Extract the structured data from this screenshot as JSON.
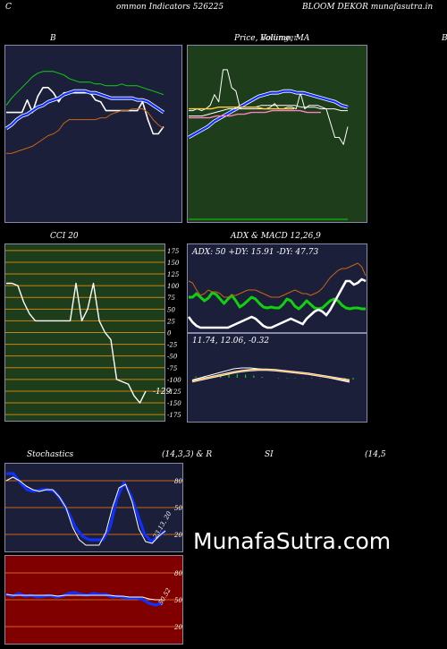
{
  "header": {
    "left": "C",
    "middle": "ommon  Indicators 526225",
    "right": "BLOOM DEKOR munafasutra.in"
  },
  "titles": {
    "bb": "B",
    "price": "Price,  Volume,  MA",
    "price_overlap": "Bollinger",
    "far_right": "B",
    "cci": "CCI 20",
    "adx_macd": "ADX  & MACD 12,26,9",
    "stoch": "Stochastics",
    "stoch_params": "(14,3,3) & R",
    "si": "SI",
    "si_params": "(14,5"
  },
  "watermark": "MunafaSutra.com",
  "colors": {
    "navy": "#1b1f3a",
    "green_panel": "#1e3d1a",
    "red_panel": "#800000",
    "blue_line": "#1030ff",
    "green_line": "#10d010",
    "orange_line": "#c86414"
  },
  "chart_data": [
    {
      "type": "line",
      "panel": "bollinger-bands",
      "title": "B",
      "ylim": [
        0,
        10
      ],
      "series": [
        {
          "role": "price",
          "color": "#ffffff",
          "values": [
            6.2,
            6.2,
            6.2,
            6.2,
            6.9,
            6.2,
            7.1,
            7.6,
            7.6,
            7.3,
            6.8,
            7.3,
            7.3,
            7.3,
            7.3,
            7.3,
            7.3,
            6.9,
            6.8,
            6.3,
            6.3,
            6.3,
            6.3,
            6.3,
            6.3,
            6.3,
            6.8,
            5.8,
            5.0,
            5.0,
            5.4
          ]
        },
        {
          "role": "upper",
          "color": "#10d010",
          "values": [
            6.6,
            7.0,
            7.3,
            7.6,
            7.9,
            8.2,
            8.4,
            8.5,
            8.5,
            8.5,
            8.4,
            8.3,
            8.1,
            8.0,
            7.9,
            7.9,
            7.9,
            7.8,
            7.8,
            7.7,
            7.7,
            7.7,
            7.8,
            7.7,
            7.7,
            7.7,
            7.6,
            7.5,
            7.4,
            7.3,
            7.2
          ]
        },
        {
          "role": "middle",
          "color": "#1030ff",
          "values": [
            5.3,
            5.5,
            5.8,
            6.0,
            6.1,
            6.3,
            6.5,
            6.6,
            6.8,
            6.9,
            7.0,
            7.2,
            7.3,
            7.4,
            7.4,
            7.4,
            7.3,
            7.3,
            7.2,
            7.1,
            7.0,
            7.0,
            7.0,
            7.0,
            7.0,
            6.9,
            6.9,
            6.8,
            6.6,
            6.4,
            6.2
          ]
        },
        {
          "role": "lower",
          "color": "#c86414",
          "values": [
            3.9,
            3.9,
            4.0,
            4.1,
            4.2,
            4.3,
            4.5,
            4.7,
            4.9,
            5.0,
            5.2,
            5.6,
            5.8,
            5.8,
            5.8,
            5.8,
            5.8,
            5.8,
            5.9,
            5.9,
            6.1,
            6.2,
            6.3,
            6.3,
            6.4,
            6.4,
            6.4,
            6.2,
            5.8,
            5.5,
            5.3
          ]
        }
      ]
    },
    {
      "type": "line",
      "panel": "price-volume-ma",
      "title": "Price,  Volume,  MA",
      "ylim": [
        0,
        10
      ],
      "series": [
        {
          "role": "price",
          "color": "#ffffff",
          "values": [
            6.3,
            6.3,
            6.4,
            6.3,
            6.4,
            6.6,
            7.2,
            6.8,
            8.6,
            8.6,
            7.6,
            7.4,
            6.4,
            6.4,
            6.4,
            6.4,
            6.4,
            6.4,
            6.4,
            6.5,
            6.7,
            6.4,
            6.4,
            6.5,
            6.5,
            6.4,
            7.3,
            6.4,
            6.6,
            6.6,
            6.6,
            6.5,
            6.4,
            5.6,
            4.8,
            4.8,
            4.4,
            5.4
          ]
        },
        {
          "role": "ma-blue",
          "color": "#1030ff",
          "values": [
            4.8,
            5.0,
            5.2,
            5.4,
            5.7,
            5.9,
            6.1,
            6.3,
            6.5,
            6.7,
            6.9,
            7.1,
            7.2,
            7.3,
            7.3,
            7.4,
            7.4,
            7.3,
            7.3,
            7.2,
            7.1,
            7.0,
            6.9,
            6.8,
            6.6,
            6.5
          ]
        },
        {
          "role": "ma-white",
          "color": "#ffffff",
          "values": [
            6.0,
            6.0,
            6.0,
            6.1,
            6.2,
            6.3,
            6.4,
            6.4,
            6.5,
            6.5,
            6.5,
            6.6,
            6.6,
            6.6,
            6.6,
            6.6,
            6.6,
            6.5,
            6.5,
            6.5,
            6.4,
            6.4,
            6.4,
            6.3,
            6.3
          ]
        },
        {
          "role": "ma-pink",
          "color": "#ff80c0",
          "values": [
            5.9,
            5.9,
            5.9,
            5.9,
            6.0,
            6.0,
            6.0,
            6.1,
            6.1,
            6.2,
            6.2,
            6.2,
            6.3,
            6.3,
            6.3,
            6.3,
            6.3,
            6.2,
            6.2,
            6.2
          ]
        },
        {
          "role": "ma-yellow",
          "color": "#ffd040",
          "values": [
            6.4,
            6.4,
            6.4,
            6.4,
            6.5,
            6.5,
            6.5,
            6.5,
            6.5,
            6.5,
            6.4,
            6.4,
            6.4,
            6.4,
            6.4
          ]
        },
        {
          "role": "volume-line",
          "color": "#10d010",
          "values": [
            0.2,
            0.2,
            0.2,
            0.2,
            0.2,
            0.2,
            0.2,
            0.2,
            0.2,
            0.2
          ]
        }
      ]
    },
    {
      "type": "line",
      "panel": "cci",
      "title": "CCI 20",
      "ylim": [
        -190,
        190
      ],
      "y_ticks": [
        175,
        150,
        125,
        100,
        75,
        50,
        25,
        0,
        -25,
        -50,
        -75,
        -100,
        -125,
        -150,
        -175
      ],
      "last_label": "-129",
      "series": [
        {
          "role": "cci",
          "color": "#ffffff",
          "values": [
            105,
            105,
            100,
            65,
            40,
            25,
            25,
            25,
            25,
            25,
            25,
            25,
            105,
            25,
            50,
            105,
            25,
            0,
            -15,
            -100,
            -105,
            -110,
            -135,
            -150,
            -125
          ]
        }
      ]
    },
    {
      "type": "line",
      "panel": "adx",
      "readout": "ADX: 50  +DY: 15.91 -DY: 47.73",
      "ylim": [
        0,
        100
      ],
      "series": [
        {
          "role": "adx",
          "color": "#10d010",
          "values": [
            40,
            40,
            44,
            40,
            36,
            39,
            45,
            43,
            38,
            33,
            38,
            42,
            36,
            29,
            32,
            36,
            40,
            38,
            33,
            29,
            28,
            29,
            28,
            28,
            32,
            38,
            36,
            30,
            27,
            31,
            36,
            32,
            28,
            27,
            28,
            32,
            36,
            38,
            36,
            31,
            28,
            27,
            28,
            28,
            27,
            27
          ]
        },
        {
          "role": "+DI",
          "color": "#ffffff",
          "values": [
            18,
            12,
            8,
            6,
            6,
            6,
            6,
            6,
            6,
            6,
            6,
            8,
            10,
            12,
            14,
            16,
            18,
            16,
            12,
            8,
            6,
            6,
            8,
            10,
            12,
            14,
            16,
            14,
            12,
            10,
            16,
            20,
            24,
            26,
            24,
            20,
            26,
            34,
            42,
            50,
            58,
            58,
            54,
            56,
            60,
            58
          ]
        },
        {
          "role": "-DI",
          "color": "#c86414",
          "values": [
            58,
            56,
            48,
            42,
            44,
            48,
            46,
            46,
            44,
            40,
            40,
            42,
            42,
            44,
            46,
            48,
            48,
            48,
            46,
            44,
            42,
            40,
            40,
            40,
            42,
            44,
            46,
            48,
            46,
            44,
            44,
            42,
            44,
            46,
            50,
            56,
            62,
            66,
            70,
            72,
            72,
            74,
            76,
            78,
            74,
            64
          ]
        }
      ]
    },
    {
      "type": "line",
      "panel": "macd",
      "readout": "11.74,  12.06,  -0.32",
      "ylim": [
        -1,
        1
      ],
      "series": [
        {
          "role": "macd",
          "color": "#ffffff",
          "values": [
            -0.05,
            0.0,
            0.05,
            0.1,
            0.15,
            0.2,
            0.22,
            0.22,
            0.2,
            0.18,
            0.16,
            0.14,
            0.12,
            0.1,
            0.08,
            0.05,
            0.02,
            -0.02,
            -0.06,
            -0.1
          ]
        },
        {
          "role": "signal",
          "color": "#ffaa33",
          "values": [
            -0.08,
            -0.04,
            0.0,
            0.04,
            0.08,
            0.12,
            0.15,
            0.17,
            0.18,
            0.18,
            0.17,
            0.15,
            0.13,
            0.11,
            0.09,
            0.06,
            0.03,
            0.0,
            -0.03,
            -0.06
          ]
        },
        {
          "role": "histogram",
          "color": "#10d010",
          "values": [
            0.03,
            0.04,
            0.05,
            0.06,
            0.07,
            0.08,
            0.07,
            0.05,
            0.02,
            0.0,
            -0.01,
            -0.01,
            -0.01,
            -0.01,
            -0.01,
            -0.01,
            -0.01,
            -0.02,
            -0.03,
            -0.04
          ]
        }
      ]
    },
    {
      "type": "line",
      "panel": "stochastics",
      "title": "Stochastics",
      "ylim": [
        0,
        100
      ],
      "y_ticks": [
        80,
        50,
        20
      ],
      "last_label": "23.13, 20",
      "series": [
        {
          "role": "%K",
          "color": "#1030ff",
          "values": [
            88,
            88,
            78,
            70,
            68,
            70,
            70,
            68,
            58,
            44,
            28,
            18,
            14,
            14,
            14,
            28,
            60,
            78,
            64,
            42,
            20,
            12,
            18,
            24
          ]
        },
        {
          "role": "%D",
          "color": "#ffffff",
          "values": [
            80,
            84,
            80,
            74,
            70,
            68,
            70,
            70,
            62,
            50,
            28,
            14,
            8,
            8,
            8,
            22,
            50,
            72,
            76,
            56,
            26,
            12,
            10,
            18,
            24
          ]
        }
      ]
    },
    {
      "type": "line",
      "panel": "rsi",
      "title": "SI",
      "ylim": [
        0,
        100
      ],
      "y_ticks": [
        80,
        50,
        20
      ],
      "last_label": "50.52",
      "series": [
        {
          "role": "rsi",
          "color": "#1030ff",
          "values": [
            56,
            54,
            57,
            54,
            55,
            53,
            54,
            55,
            53,
            54,
            57,
            58,
            56,
            55,
            57,
            56,
            56,
            53,
            54,
            52,
            52,
            52,
            50,
            46,
            44,
            46
          ]
        },
        {
          "role": "rsi-white",
          "color": "#ffffff",
          "values": [
            56,
            55,
            55,
            55,
            55,
            55,
            55,
            55,
            54,
            55,
            55,
            55,
            55,
            55,
            55,
            55,
            55,
            54,
            54,
            53,
            53,
            53,
            51,
            50,
            50
          ]
        }
      ]
    }
  ]
}
